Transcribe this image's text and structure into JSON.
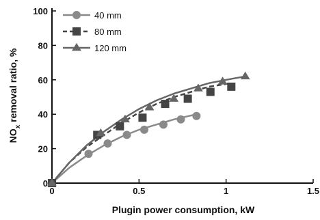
{
  "chart_data": {
    "type": "scatter",
    "xlabel": "Plugin power consumption, kW",
    "ylabel_parts": [
      "NO",
      "x",
      " removal ratio, %"
    ],
    "xlim": [
      0,
      1.5
    ],
    "ylim": [
      0,
      100
    ],
    "x_ticks": [
      0,
      0.5,
      1,
      1.5
    ],
    "x_tick_labels": [
      "0",
      "0.5",
      "1",
      "1.5"
    ],
    "y_ticks": [
      0,
      20,
      40,
      60,
      80,
      100
    ],
    "y_tick_labels": [
      "0",
      "20",
      "40",
      "60",
      "80",
      "100"
    ],
    "legend_position": "top-left",
    "series": [
      {
        "name": "40 mm",
        "marker": "circle",
        "line_style": "solid",
        "color": "#8a8a8a",
        "points": [
          {
            "x": 0,
            "y": 0
          },
          {
            "x": 0.21,
            "y": 17
          },
          {
            "x": 0.32,
            "y": 23
          },
          {
            "x": 0.43,
            "y": 28
          },
          {
            "x": 0.53,
            "y": 31
          },
          {
            "x": 0.64,
            "y": 34
          },
          {
            "x": 0.74,
            "y": 37
          },
          {
            "x": 0.83,
            "y": 39
          }
        ],
        "fit": [
          {
            "x": 0,
            "y": 0
          },
          {
            "x": 0.1,
            "y": 9
          },
          {
            "x": 0.2,
            "y": 16
          },
          {
            "x": 0.3,
            "y": 22
          },
          {
            "x": 0.4,
            "y": 27
          },
          {
            "x": 0.5,
            "y": 31
          },
          {
            "x": 0.6,
            "y": 34
          },
          {
            "x": 0.7,
            "y": 37
          },
          {
            "x": 0.83,
            "y": 40
          }
        ]
      },
      {
        "name": "80 mm",
        "marker": "square",
        "line_style": "dashed",
        "color": "#444444",
        "points": [
          {
            "x": 0,
            "y": 0
          },
          {
            "x": 0.26,
            "y": 28
          },
          {
            "x": 0.39,
            "y": 33
          },
          {
            "x": 0.52,
            "y": 38
          },
          {
            "x": 0.65,
            "y": 46
          },
          {
            "x": 0.78,
            "y": 49
          },
          {
            "x": 0.91,
            "y": 53
          },
          {
            "x": 1.03,
            "y": 56
          }
        ],
        "fit": [
          {
            "x": 0,
            "y": 0
          },
          {
            "x": 0.1,
            "y": 12
          },
          {
            "x": 0.2,
            "y": 21
          },
          {
            "x": 0.3,
            "y": 28
          },
          {
            "x": 0.4,
            "y": 35
          },
          {
            "x": 0.5,
            "y": 41
          },
          {
            "x": 0.6,
            "y": 46
          },
          {
            "x": 0.7,
            "y": 50
          },
          {
            "x": 0.8,
            "y": 53
          },
          {
            "x": 0.9,
            "y": 56
          },
          {
            "x": 1.03,
            "y": 58
          }
        ]
      },
      {
        "name": "120 mm",
        "marker": "triangle",
        "line_style": "solid",
        "color": "#666666",
        "points": [
          {
            "x": 0,
            "y": 0
          },
          {
            "x": 0.28,
            "y": 29
          },
          {
            "x": 0.42,
            "y": 37
          },
          {
            "x": 0.56,
            "y": 44
          },
          {
            "x": 0.7,
            "y": 49
          },
          {
            "x": 0.84,
            "y": 55
          },
          {
            "x": 0.98,
            "y": 59
          },
          {
            "x": 1.11,
            "y": 62
          }
        ],
        "fit": [
          {
            "x": 0,
            "y": 0
          },
          {
            "x": 0.1,
            "y": 12
          },
          {
            "x": 0.2,
            "y": 22
          },
          {
            "x": 0.3,
            "y": 30
          },
          {
            "x": 0.4,
            "y": 37
          },
          {
            "x": 0.5,
            "y": 43
          },
          {
            "x": 0.6,
            "y": 48
          },
          {
            "x": 0.7,
            "y": 52
          },
          {
            "x": 0.8,
            "y": 55
          },
          {
            "x": 0.9,
            "y": 58
          },
          {
            "x": 1.0,
            "y": 60
          },
          {
            "x": 1.11,
            "y": 62
          }
        ]
      }
    ]
  }
}
